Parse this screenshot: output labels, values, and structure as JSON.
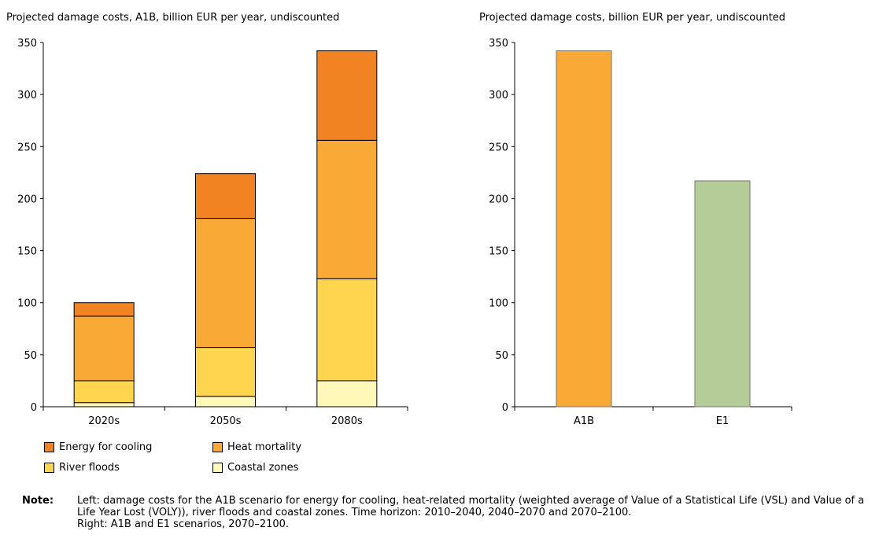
{
  "chart_data": [
    {
      "type": "bar",
      "stacked": true,
      "title": "Projected damage costs, A1B, billion EUR per year, undiscounted",
      "categories": [
        "2020s",
        "2050s",
        "2080s"
      ],
      "ylim": [
        0,
        350
      ],
      "yticks": [
        0,
        50,
        100,
        150,
        200,
        250,
        300,
        350
      ],
      "series": [
        {
          "name": "Coastal zones",
          "values": [
            4,
            10,
            25
          ],
          "color": "#FFF8B8"
        },
        {
          "name": "River floods",
          "values": [
            21,
            47,
            98
          ],
          "color": "#FFD54F"
        },
        {
          "name": "Heat mortality",
          "values": [
            62,
            124,
            133
          ],
          "color": "#F9AA36"
        },
        {
          "name": "Energy for cooling",
          "values": [
            13,
            43,
            86
          ],
          "color": "#F28323"
        }
      ],
      "grid": false
    },
    {
      "type": "bar",
      "title": "Projected damage costs, billion EUR per year, undiscounted",
      "categories": [
        "A1B",
        "E1"
      ],
      "values": [
        342,
        217
      ],
      "colors": [
        "#F9AA36",
        "#B4CC96"
      ],
      "ylim": [
        0,
        350
      ],
      "yticks": [
        0,
        50,
        100,
        150,
        200,
        250,
        300,
        350
      ],
      "grid": false
    }
  ],
  "legend": {
    "items": [
      {
        "label": "Energy for cooling",
        "color": "#F28323"
      },
      {
        "label": "Heat mortality",
        "color": "#F9AA36"
      },
      {
        "label": "River floods",
        "color": "#FFD54F"
      },
      {
        "label": "Coastal zones",
        "color": "#FFF8B8"
      }
    ]
  },
  "note": {
    "label": "Note:",
    "lines": [
      "Left: damage costs for the A1B scenario for energy for cooling, heat-related mortality (weighted average of Value of a Statistical Life (VSL) and Value of a Life Year Lost (VOLY)), river floods and coastal zones. Time horizon: 2010–2040, 2040–2070 and 2070–2100.",
      "Right: A1B and E1 scenarios, 2070–2100."
    ]
  }
}
